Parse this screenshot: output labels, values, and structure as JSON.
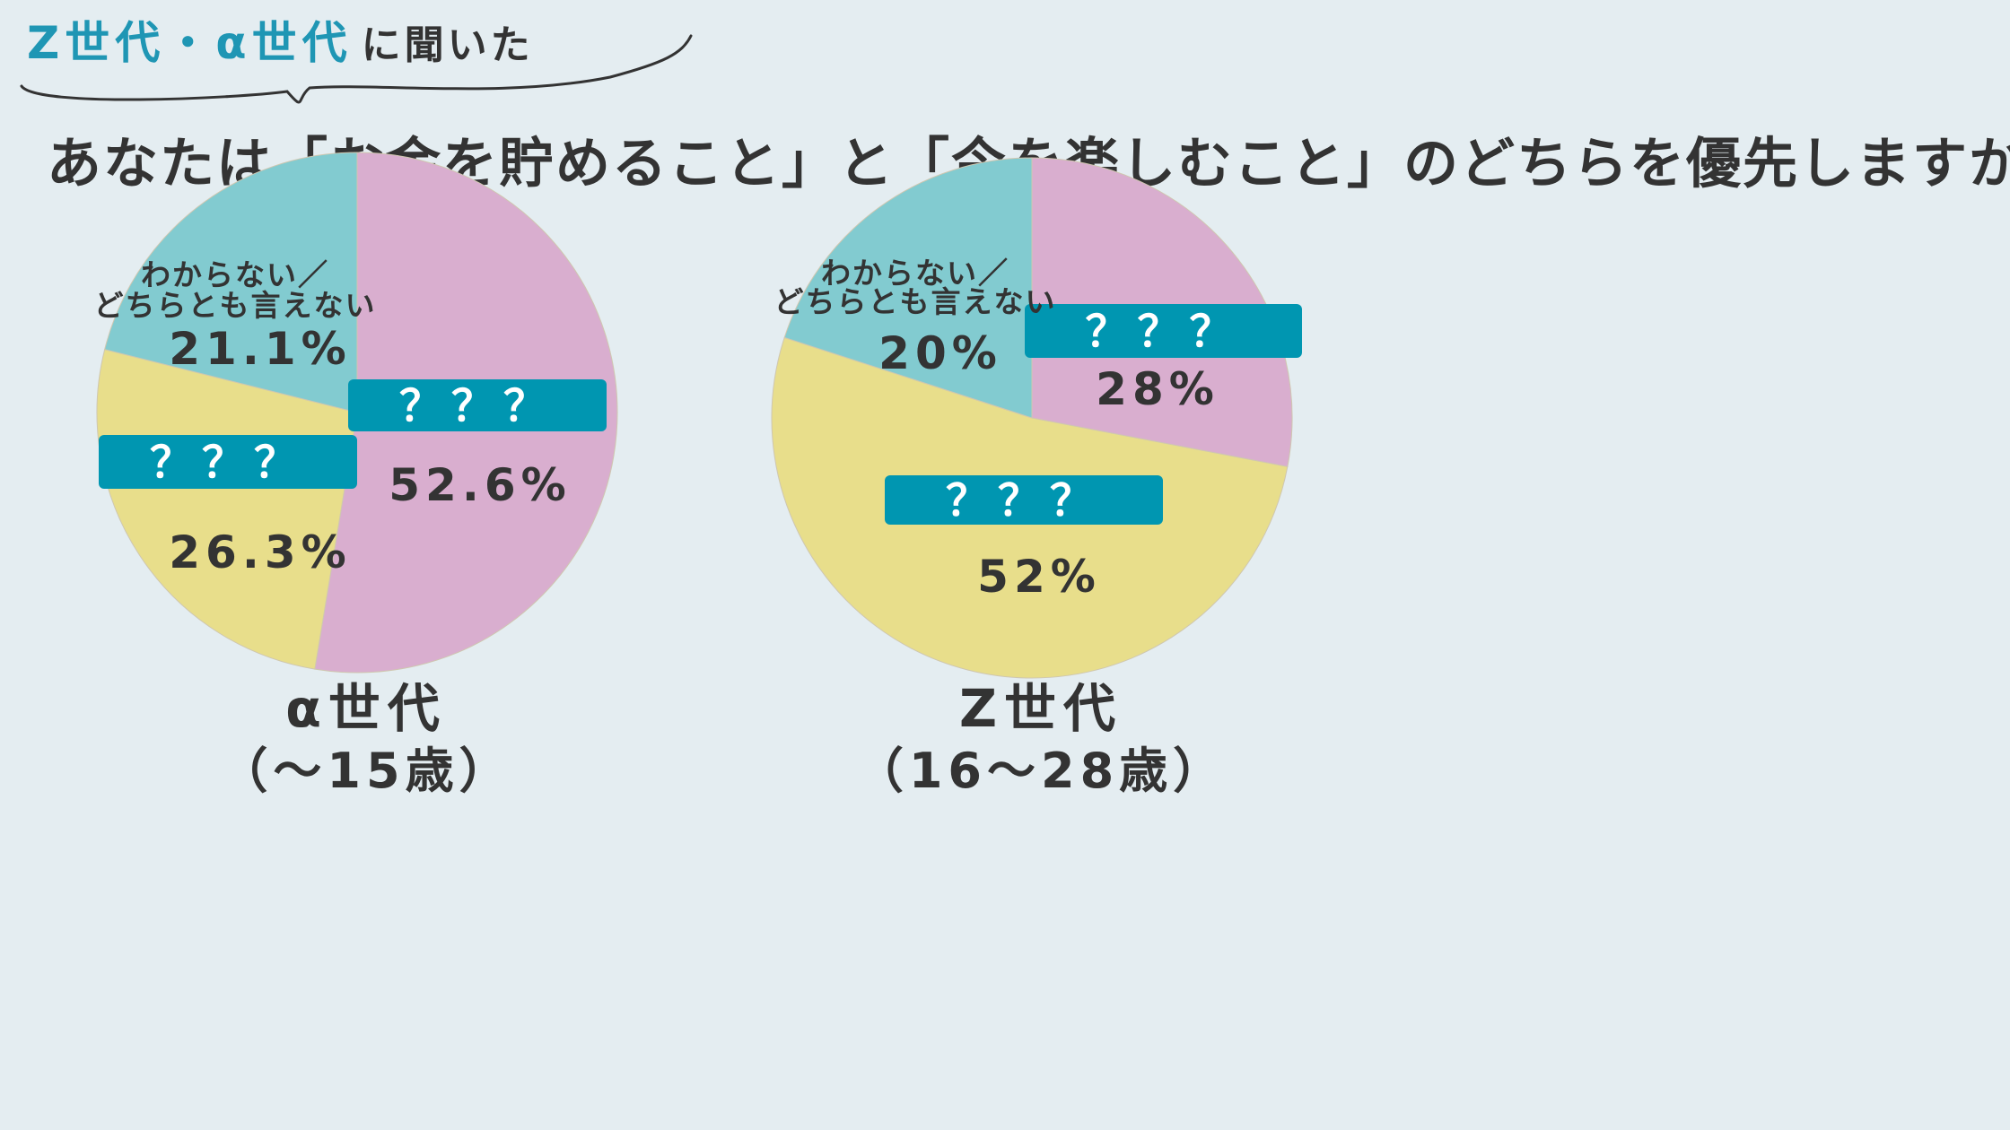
{
  "header": {
    "audience": "Z世代・α世代",
    "audience_suffix": "に聞いた",
    "question": "あなたは「お金を貯めること」と「今を楽しむこと」のどちらを優先しますか？"
  },
  "colors": {
    "pink": "#d9aecf",
    "yellow": "#e8de8b",
    "teal": "#82cbd0",
    "label_box": "#0096b1",
    "text": "#333333",
    "accent": "#1f96b4"
  },
  "chart_data": [
    {
      "type": "pie",
      "title": "α世代",
      "subtitle": "（～15歳）",
      "slices": [
        {
          "label": "？？？",
          "value": 52.6,
          "display": "52.6%",
          "color": "#d9aecf"
        },
        {
          "label": "？？？",
          "value": 26.3,
          "display": "26.3%",
          "color": "#e8de8b"
        },
        {
          "label": "わからない／どちらとも言えない",
          "value": 21.1,
          "display": "21.1%",
          "color": "#82cbd0"
        }
      ]
    },
    {
      "type": "pie",
      "title": "Z世代",
      "subtitle": "（16～28歳）",
      "slices": [
        {
          "label": "？？？",
          "value": 28,
          "display": "28%",
          "color": "#d9aecf"
        },
        {
          "label": "？？？",
          "value": 52,
          "display": "52%",
          "color": "#e8de8b"
        },
        {
          "label": "わからない／どちらとも言えない",
          "value": 20,
          "display": "20%",
          "color": "#82cbd0"
        }
      ]
    }
  ]
}
